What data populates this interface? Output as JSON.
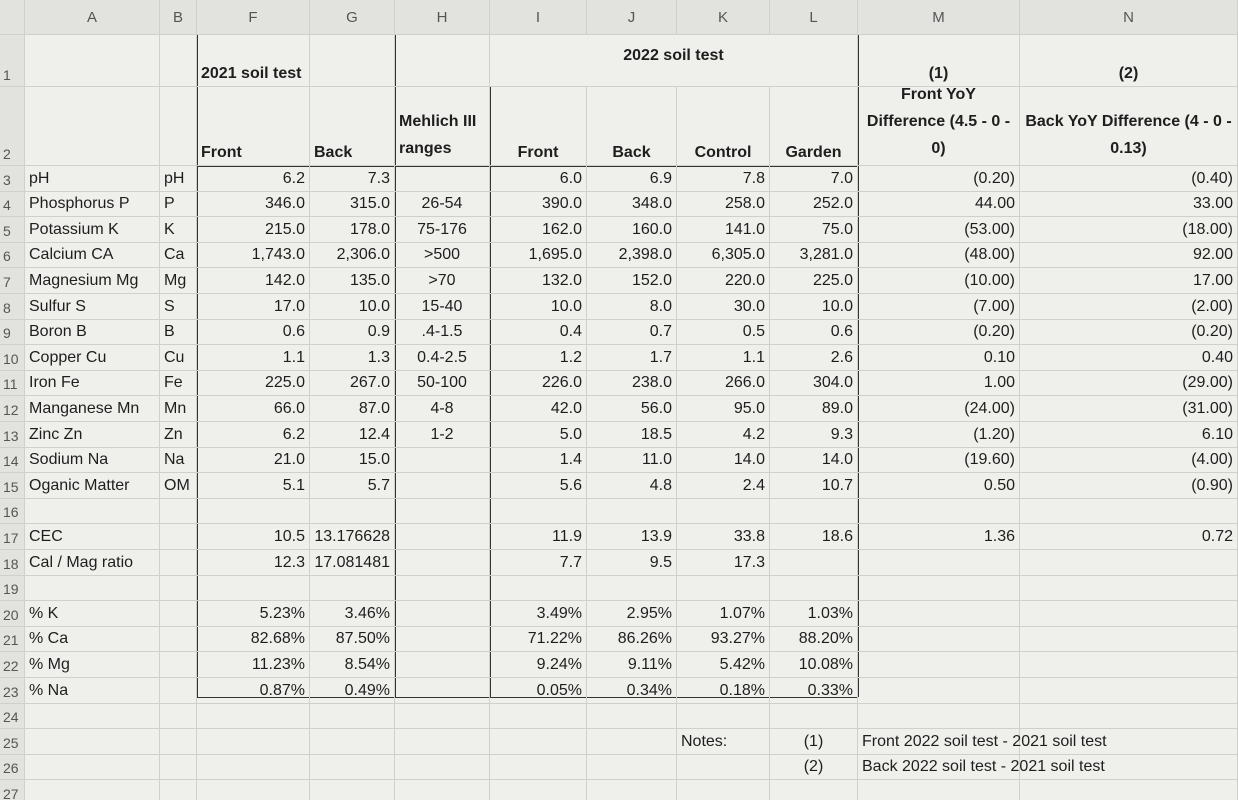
{
  "columns": [
    "A",
    "B",
    "F",
    "G",
    "H",
    "I",
    "J",
    "K",
    "L",
    "M",
    "N"
  ],
  "rows": [
    {
      "number": "1",
      "cells": {
        "F": "2021 soil test",
        "I": "2022 soil test",
        "M": "(1)",
        "N": "(2)"
      }
    },
    {
      "number": "2",
      "cells": {
        "F": "Front",
        "G": "Back",
        "H": "Mehlich III ranges",
        "I": "Front",
        "J": "Back",
        "K": "Control",
        "L": "Garden",
        "M": "Front YoY Difference (4.5 - 0 - 0)",
        "N": "Back YoY Difference (4 - 0 - 0.13)"
      }
    },
    {
      "number": "3",
      "cells": {
        "A": "pH",
        "B": "pH",
        "F": "6.2",
        "G": "7.3",
        "I": "6.0",
        "J": "6.9",
        "K": "7.8",
        "L": "7.0",
        "M": "(0.20)",
        "N": "(0.40)"
      }
    },
    {
      "number": "4",
      "cells": {
        "A": "Phosphorus P",
        "B": "P",
        "F": "346.0",
        "G": "315.0",
        "H": "26-54",
        "I": "390.0",
        "J": "348.0",
        "K": "258.0",
        "L": "252.0",
        "M": "44.00",
        "N": "33.00"
      }
    },
    {
      "number": "5",
      "cells": {
        "A": "Potassium K",
        "B": "K",
        "F": "215.0",
        "G": "178.0",
        "H": "75-176",
        "I": "162.0",
        "J": "160.0",
        "K": "141.0",
        "L": "75.0",
        "M": "(53.00)",
        "N": "(18.00)"
      }
    },
    {
      "number": "6",
      "cells": {
        "A": "Calcium CA",
        "B": "Ca",
        "F": "1,743.0",
        "G": "2,306.0",
        "H": ">500",
        "I": "1,695.0",
        "J": "2,398.0",
        "K": "6,305.0",
        "L": "3,281.0",
        "M": "(48.00)",
        "N": "92.00"
      }
    },
    {
      "number": "7",
      "cells": {
        "A": "Magnesium Mg",
        "B": "Mg",
        "F": "142.0",
        "G": "135.0",
        "H": ">70",
        "I": "132.0",
        "J": "152.0",
        "K": "220.0",
        "L": "225.0",
        "M": "(10.00)",
        "N": "17.00"
      }
    },
    {
      "number": "8",
      "cells": {
        "A": "Sulfur S",
        "B": "S",
        "F": "17.0",
        "G": "10.0",
        "H": "15-40",
        "I": "10.0",
        "J": "8.0",
        "K": "30.0",
        "L": "10.0",
        "M": "(7.00)",
        "N": "(2.00)"
      }
    },
    {
      "number": "9",
      "cells": {
        "A": "Boron B",
        "B": "B",
        "F": "0.6",
        "G": "0.9",
        "H": ".4-1.5",
        "I": "0.4",
        "J": "0.7",
        "K": "0.5",
        "L": "0.6",
        "M": "(0.20)",
        "N": "(0.20)"
      }
    },
    {
      "number": "10",
      "cells": {
        "A": "Copper Cu",
        "B": "Cu",
        "F": "1.1",
        "G": "1.3",
        "H": "0.4-2.5",
        "I": "1.2",
        "J": "1.7",
        "K": "1.1",
        "L": "2.6",
        "M": "0.10",
        "N": "0.40"
      }
    },
    {
      "number": "11",
      "cells": {
        "A": "Iron Fe",
        "B": "Fe",
        "F": "225.0",
        "G": "267.0",
        "H": "50-100",
        "I": "226.0",
        "J": "238.0",
        "K": "266.0",
        "L": "304.0",
        "M": "1.00",
        "N": "(29.00)"
      }
    },
    {
      "number": "12",
      "cells": {
        "A": "Manganese Mn",
        "B": "Mn",
        "F": "66.0",
        "G": "87.0",
        "H": "4-8",
        "I": "42.0",
        "J": "56.0",
        "K": "95.0",
        "L": "89.0",
        "M": "(24.00)",
        "N": "(31.00)"
      }
    },
    {
      "number": "13",
      "cells": {
        "A": "Zinc Zn",
        "B": "Zn",
        "F": "6.2",
        "G": "12.4",
        "H": "1-2",
        "I": "5.0",
        "J": "18.5",
        "K": "4.2",
        "L": "9.3",
        "M": "(1.20)",
        "N": "6.10"
      }
    },
    {
      "number": "14",
      "cells": {
        "A": "Sodium Na",
        "B": "Na",
        "F": "21.0",
        "G": "15.0",
        "I": "1.4",
        "J": "11.0",
        "K": "14.0",
        "L": "14.0",
        "M": "(19.60)",
        "N": "(4.00)"
      }
    },
    {
      "number": "15",
      "cells": {
        "A": "Oganic Matter",
        "B": "OM",
        "F": "5.1",
        "G": "5.7",
        "I": "5.6",
        "J": "4.8",
        "K": "2.4",
        "L": "10.7",
        "M": "0.50",
        "N": "(0.90)"
      }
    },
    {
      "number": "16",
      "cells": {}
    },
    {
      "number": "17",
      "cells": {
        "A": "CEC",
        "F": "10.5",
        "G": "13.176628",
        "I": "11.9",
        "J": "13.9",
        "K": "33.8",
        "L": "18.6",
        "M": "1.36",
        "N": "0.72"
      }
    },
    {
      "number": "18",
      "cells": {
        "A": "Cal / Mag ratio",
        "F": "12.3",
        "G": "17.081481",
        "I": "7.7",
        "J": "9.5",
        "K": "17.3"
      }
    },
    {
      "number": "19",
      "cells": {}
    },
    {
      "number": "20",
      "cells": {
        "A": "% K",
        "F": "5.23%",
        "G": "3.46%",
        "I": "3.49%",
        "J": "2.95%",
        "K": "1.07%",
        "L": "1.03%"
      }
    },
    {
      "number": "21",
      "cells": {
        "A": "% Ca",
        "F": "82.68%",
        "G": "87.50%",
        "I": "71.22%",
        "J": "86.26%",
        "K": "93.27%",
        "L": "88.20%"
      }
    },
    {
      "number": "22",
      "cells": {
        "A": "% Mg",
        "F": "11.23%",
        "G": "8.54%",
        "I": "9.24%",
        "J": "9.11%",
        "K": "5.42%",
        "L": "10.08%"
      }
    },
    {
      "number": "23",
      "cells": {
        "A": "% Na",
        "F": "0.87%",
        "G": "0.49%",
        "I": "0.05%",
        "J": "0.34%",
        "K": "0.18%",
        "L": "0.33%"
      }
    },
    {
      "number": "24",
      "cells": {}
    },
    {
      "number": "25",
      "cells": {
        "K": "Notes:",
        "L": "(1)",
        "M": "Front 2022 soil test - 2021 soil test"
      }
    },
    {
      "number": "26",
      "cells": {
        "L": "(2)",
        "M": "Back 2022 soil test - 2021 soil test"
      }
    },
    {
      "number": "27",
      "cells": {}
    }
  ]
}
